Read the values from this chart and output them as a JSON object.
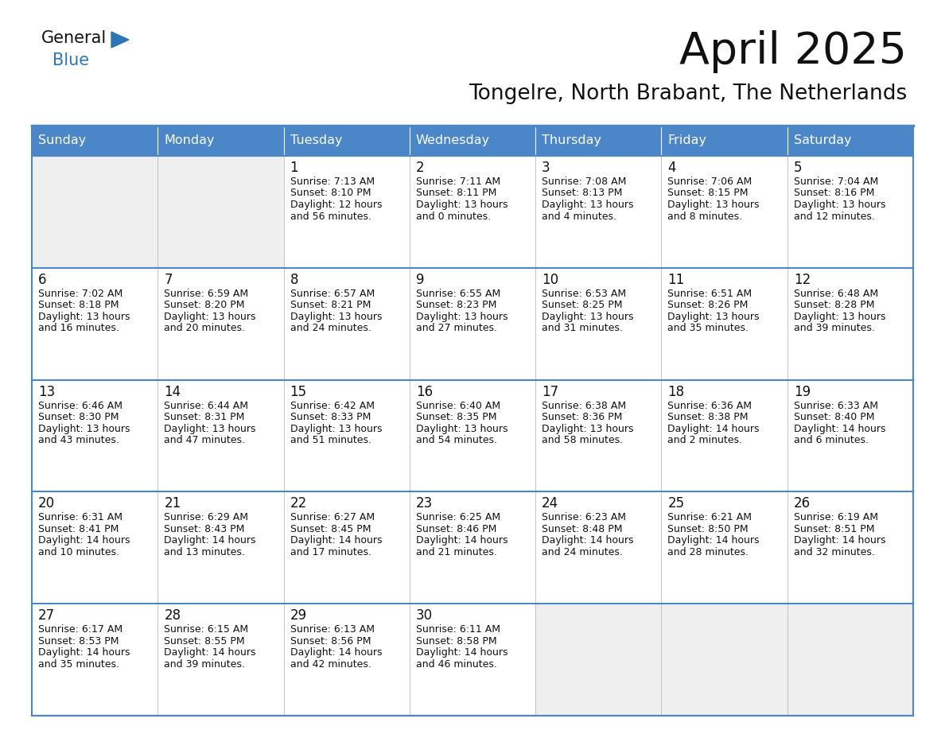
{
  "title": "April 2025",
  "subtitle": "Tongelre, North Brabant, The Netherlands",
  "days_of_week": [
    "Sunday",
    "Monday",
    "Tuesday",
    "Wednesday",
    "Thursday",
    "Friday",
    "Saturday"
  ],
  "header_bg": "#4A86C8",
  "header_text": "#FFFFFF",
  "cell_bg_empty": "#EFEFEF",
  "cell_bg_filled": "#FFFFFF",
  "border_color_dark": "#4A86C8",
  "border_color_light": "#BBBBBB",
  "title_color": "#111111",
  "subtitle_color": "#111111",
  "cell_text_color": "#111111",
  "logo_general_color": "#111111",
  "logo_blue_color": "#2E75B6",
  "logo_triangle_color": "#2E75B6",
  "calendar_data": [
    [
      {
        "day": null,
        "lines": []
      },
      {
        "day": null,
        "lines": []
      },
      {
        "day": "1",
        "lines": [
          "Sunrise: 7:13 AM",
          "Sunset: 8:10 PM",
          "Daylight: 12 hours",
          "and 56 minutes."
        ]
      },
      {
        "day": "2",
        "lines": [
          "Sunrise: 7:11 AM",
          "Sunset: 8:11 PM",
          "Daylight: 13 hours",
          "and 0 minutes."
        ]
      },
      {
        "day": "3",
        "lines": [
          "Sunrise: 7:08 AM",
          "Sunset: 8:13 PM",
          "Daylight: 13 hours",
          "and 4 minutes."
        ]
      },
      {
        "day": "4",
        "lines": [
          "Sunrise: 7:06 AM",
          "Sunset: 8:15 PM",
          "Daylight: 13 hours",
          "and 8 minutes."
        ]
      },
      {
        "day": "5",
        "lines": [
          "Sunrise: 7:04 AM",
          "Sunset: 8:16 PM",
          "Daylight: 13 hours",
          "and 12 minutes."
        ]
      }
    ],
    [
      {
        "day": "6",
        "lines": [
          "Sunrise: 7:02 AM",
          "Sunset: 8:18 PM",
          "Daylight: 13 hours",
          "and 16 minutes."
        ]
      },
      {
        "day": "7",
        "lines": [
          "Sunrise: 6:59 AM",
          "Sunset: 8:20 PM",
          "Daylight: 13 hours",
          "and 20 minutes."
        ]
      },
      {
        "day": "8",
        "lines": [
          "Sunrise: 6:57 AM",
          "Sunset: 8:21 PM",
          "Daylight: 13 hours",
          "and 24 minutes."
        ]
      },
      {
        "day": "9",
        "lines": [
          "Sunrise: 6:55 AM",
          "Sunset: 8:23 PM",
          "Daylight: 13 hours",
          "and 27 minutes."
        ]
      },
      {
        "day": "10",
        "lines": [
          "Sunrise: 6:53 AM",
          "Sunset: 8:25 PM",
          "Daylight: 13 hours",
          "and 31 minutes."
        ]
      },
      {
        "day": "11",
        "lines": [
          "Sunrise: 6:51 AM",
          "Sunset: 8:26 PM",
          "Daylight: 13 hours",
          "and 35 minutes."
        ]
      },
      {
        "day": "12",
        "lines": [
          "Sunrise: 6:48 AM",
          "Sunset: 8:28 PM",
          "Daylight: 13 hours",
          "and 39 minutes."
        ]
      }
    ],
    [
      {
        "day": "13",
        "lines": [
          "Sunrise: 6:46 AM",
          "Sunset: 8:30 PM",
          "Daylight: 13 hours",
          "and 43 minutes."
        ]
      },
      {
        "day": "14",
        "lines": [
          "Sunrise: 6:44 AM",
          "Sunset: 8:31 PM",
          "Daylight: 13 hours",
          "and 47 minutes."
        ]
      },
      {
        "day": "15",
        "lines": [
          "Sunrise: 6:42 AM",
          "Sunset: 8:33 PM",
          "Daylight: 13 hours",
          "and 51 minutes."
        ]
      },
      {
        "day": "16",
        "lines": [
          "Sunrise: 6:40 AM",
          "Sunset: 8:35 PM",
          "Daylight: 13 hours",
          "and 54 minutes."
        ]
      },
      {
        "day": "17",
        "lines": [
          "Sunrise: 6:38 AM",
          "Sunset: 8:36 PM",
          "Daylight: 13 hours",
          "and 58 minutes."
        ]
      },
      {
        "day": "18",
        "lines": [
          "Sunrise: 6:36 AM",
          "Sunset: 8:38 PM",
          "Daylight: 14 hours",
          "and 2 minutes."
        ]
      },
      {
        "day": "19",
        "lines": [
          "Sunrise: 6:33 AM",
          "Sunset: 8:40 PM",
          "Daylight: 14 hours",
          "and 6 minutes."
        ]
      }
    ],
    [
      {
        "day": "20",
        "lines": [
          "Sunrise: 6:31 AM",
          "Sunset: 8:41 PM",
          "Daylight: 14 hours",
          "and 10 minutes."
        ]
      },
      {
        "day": "21",
        "lines": [
          "Sunrise: 6:29 AM",
          "Sunset: 8:43 PM",
          "Daylight: 14 hours",
          "and 13 minutes."
        ]
      },
      {
        "day": "22",
        "lines": [
          "Sunrise: 6:27 AM",
          "Sunset: 8:45 PM",
          "Daylight: 14 hours",
          "and 17 minutes."
        ]
      },
      {
        "day": "23",
        "lines": [
          "Sunrise: 6:25 AM",
          "Sunset: 8:46 PM",
          "Daylight: 14 hours",
          "and 21 minutes."
        ]
      },
      {
        "day": "24",
        "lines": [
          "Sunrise: 6:23 AM",
          "Sunset: 8:48 PM",
          "Daylight: 14 hours",
          "and 24 minutes."
        ]
      },
      {
        "day": "25",
        "lines": [
          "Sunrise: 6:21 AM",
          "Sunset: 8:50 PM",
          "Daylight: 14 hours",
          "and 28 minutes."
        ]
      },
      {
        "day": "26",
        "lines": [
          "Sunrise: 6:19 AM",
          "Sunset: 8:51 PM",
          "Daylight: 14 hours",
          "and 32 minutes."
        ]
      }
    ],
    [
      {
        "day": "27",
        "lines": [
          "Sunrise: 6:17 AM",
          "Sunset: 8:53 PM",
          "Daylight: 14 hours",
          "and 35 minutes."
        ]
      },
      {
        "day": "28",
        "lines": [
          "Sunrise: 6:15 AM",
          "Sunset: 8:55 PM",
          "Daylight: 14 hours",
          "and 39 minutes."
        ]
      },
      {
        "day": "29",
        "lines": [
          "Sunrise: 6:13 AM",
          "Sunset: 8:56 PM",
          "Daylight: 14 hours",
          "and 42 minutes."
        ]
      },
      {
        "day": "30",
        "lines": [
          "Sunrise: 6:11 AM",
          "Sunset: 8:58 PM",
          "Daylight: 14 hours",
          "and 46 minutes."
        ]
      },
      {
        "day": null,
        "lines": []
      },
      {
        "day": null,
        "lines": []
      },
      {
        "day": null,
        "lines": []
      }
    ]
  ]
}
